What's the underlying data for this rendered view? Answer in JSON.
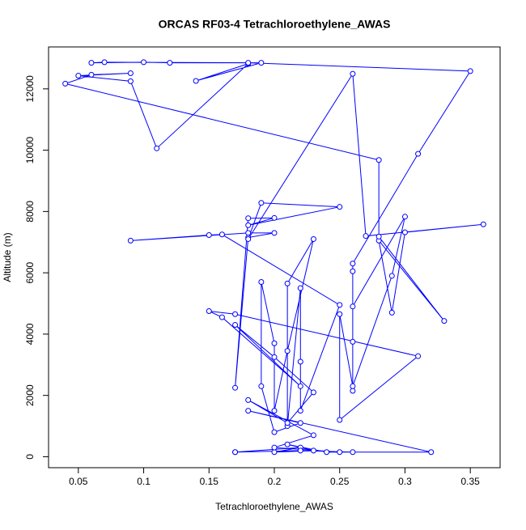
{
  "chart_data": {
    "type": "line",
    "title": "ORCAS RF03-4 Tetrachloroethylene_AWAS",
    "x_label": "Tetrachloroethylene_AWAS",
    "y_label": "Altitude (m)",
    "color": "#0000ff",
    "x": [
      0.17,
      0.22,
      0.2,
      0.23,
      0.21,
      0.24,
      0.32,
      0.18,
      0.22,
      0.2,
      0.19,
      0.19,
      0.2,
      0.2,
      0.21,
      0.23,
      0.21,
      0.21,
      0.22,
      0.22,
      0.22,
      0.25,
      0.16,
      0.15,
      0.09,
      0.18,
      0.2,
      0.18,
      0.17,
      0.18,
      0.2,
      0.18,
      0.25,
      0.19,
      0.18,
      0.26,
      0.27,
      0.36,
      0.3,
      0.29,
      0.28,
      0.33,
      0.28,
      0.28,
      0.04,
      0.06,
      0.09,
      0.05,
      0.09,
      0.11,
      0.18,
      0.14,
      0.19,
      0.07,
      0.06,
      0.1,
      0.12,
      0.18,
      0.35,
      0.31,
      0.26,
      0.26,
      0.26,
      0.26,
      0.26,
      0.3,
      0.29,
      0.26,
      0.25,
      0.25,
      0.31,
      0.17,
      0.15,
      0.16,
      0.22,
      0.17,
      0.2,
      0.23,
      0.21,
      0.18,
      0.23,
      0.2,
      0.25,
      0.26,
      0.22,
      0.17
    ],
    "values": [
      150,
      300,
      150,
      200,
      400,
      150,
      150,
      1500,
      1100,
      800,
      2300,
      5700,
      3700,
      1500,
      3450,
      7100,
      5650,
      1000,
      5500,
      3100,
      1500,
      4950,
      7250,
      7230,
      7050,
      7300,
      7300,
      7150,
      2250,
      7780,
      7790,
      7550,
      8150,
      8280,
      7100,
      12490,
      7200,
      7580,
      7320,
      4700,
      7050,
      4430,
      7180,
      9680,
      12170,
      12460,
      12510,
      12430,
      12250,
      10060,
      12820,
      12260,
      12850,
      12870,
      12850,
      12870,
      12850,
      12850,
      12580,
      9880,
      6300,
      2150,
      3750,
      6050,
      4900,
      7830,
      5900,
      2300,
      4650,
      1200,
      3280,
      4650,
      4750,
      4550,
      2300,
      4300,
      3250,
      2100,
      1100,
      1850,
      700,
      300,
      150,
      150,
      200,
      150
    ],
    "xlim": [
      0.0272,
      0.3728
    ],
    "xticks": [
      0.05,
      0.1,
      0.15,
      0.2,
      0.25,
      0.3,
      0.35
    ],
    "ylim": [
      -358,
      13368
    ],
    "yticks": [
      0,
      2000,
      4000,
      6000,
      8000,
      10000,
      12000
    ]
  }
}
